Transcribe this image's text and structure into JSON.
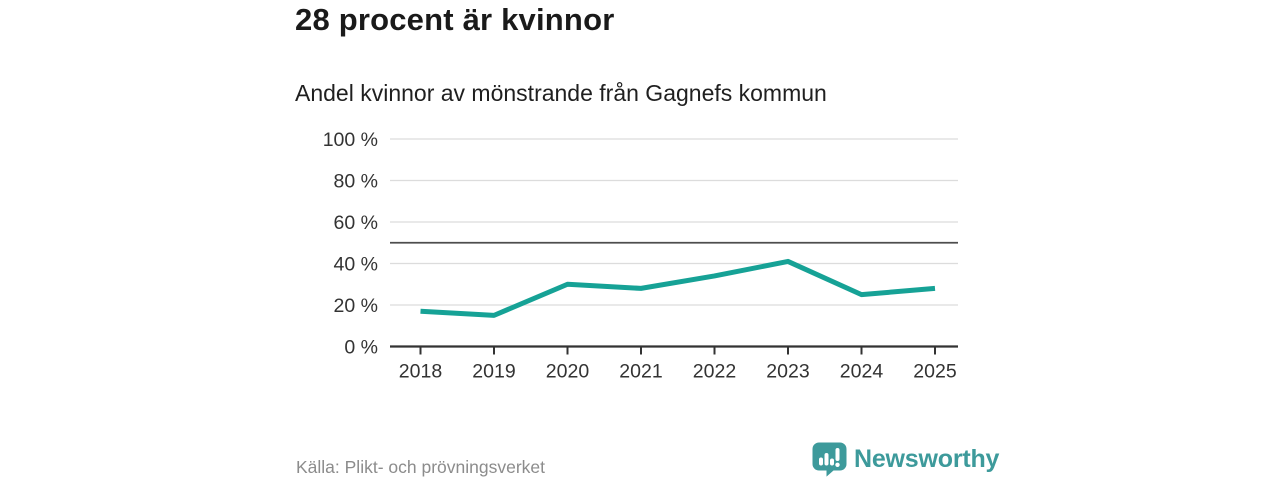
{
  "header": {
    "title": "28 procent är kvinnor",
    "subtitle": "Andel kvinnor av mönstrande från Gagnefs kommun"
  },
  "chart_data": {
    "type": "line",
    "title": "Andel kvinnor av mönstrande från Gagnefs kommun",
    "categories": [
      "2018",
      "2019",
      "2020",
      "2021",
      "2022",
      "2023",
      "2024",
      "2025"
    ],
    "series": [
      {
        "name": "Andel kvinnor",
        "values": [
          17,
          15,
          30,
          28,
          34,
          41,
          25,
          28
        ]
      }
    ],
    "unit": "%",
    "ylim": [
      0,
      100
    ],
    "y_ticks": [
      0,
      20,
      40,
      60,
      80,
      100
    ],
    "y_tick_suffix": " %",
    "reference_line": 50,
    "grid": true,
    "legend_position": "none",
    "colors": {
      "line": "#16a296",
      "grid": "#dcdcdc",
      "reference": "#4d4d4d",
      "axis": "#333333"
    }
  },
  "footer": {
    "source": "Källa: Plikt- och prövningsverket",
    "brand": "Newsworthy",
    "brand_color": "#3d9a9b",
    "logo_icon": "bar-chart-speech-bubble-icon"
  }
}
